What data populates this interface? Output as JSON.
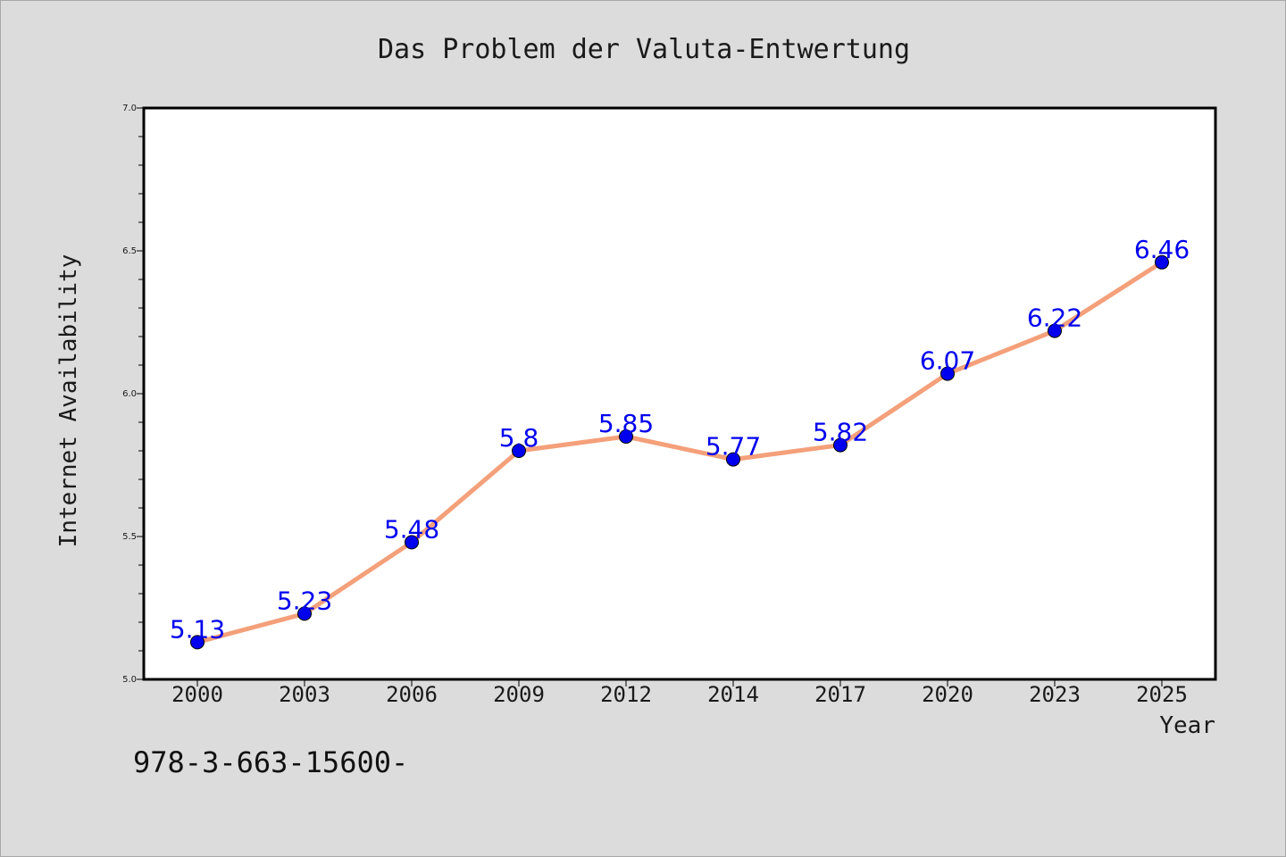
{
  "chart_data": {
    "type": "line",
    "title": "Das Problem der Valuta-Entwertung",
    "xlabel": "Year",
    "ylabel": "Internet Availability",
    "categories": [
      "2000",
      "2003",
      "2006",
      "2009",
      "2012",
      "2014",
      "2017",
      "2020",
      "2023",
      "2025"
    ],
    "series": [
      {
        "values": [
          5.13,
          5.23,
          5.48,
          5.8,
          5.85,
          5.77,
          5.82,
          6.07,
          6.22,
          6.46
        ],
        "labels": [
          "5.13",
          "5.23",
          "5.48",
          "5.8",
          "5.85",
          "5.77",
          "5.82",
          "6.07",
          "6.22",
          "6.46"
        ],
        "line_color": "#f4a07a",
        "marker_color": "#0000ee"
      }
    ],
    "ylim": [
      5.0,
      7.0
    ],
    "yticks": [
      "5.0",
      "5.5",
      "6.0",
      "6.5",
      "7.0"
    ],
    "grid": false,
    "legend": "none"
  },
  "footer": {
    "isbn": "978-3-663-15600-"
  },
  "colors": {
    "background": "#dcdcdc",
    "plot_area": "#ffffff",
    "data_label": "#0000ee"
  }
}
